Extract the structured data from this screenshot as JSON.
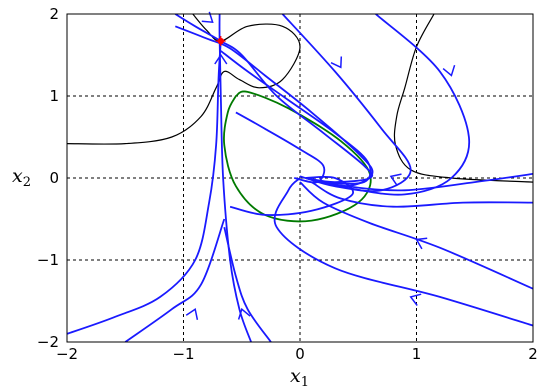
{
  "chart_data": {
    "type": "phase_portrait",
    "xlabel": "x",
    "xlabel_sub": "1",
    "ylabel": "x",
    "ylabel_sub": "2",
    "xlim": [
      -2,
      2
    ],
    "ylim": [
      -2,
      2
    ],
    "x_ticks": [
      "−2",
      "−1",
      "0",
      "1",
      "2"
    ],
    "y_ticks": [
      "−2",
      "−1",
      "0",
      "1",
      "2"
    ],
    "grid": true,
    "colors": {
      "trajectory": "#1a1aff",
      "boundary_black": "#000000",
      "boundary_green": "#007a00",
      "equilibrium_marker": "#ff0000"
    },
    "equilibria": [
      {
        "kind": "saddle",
        "x": -0.68,
        "y": 1.67,
        "marker": "red-star"
      },
      {
        "kind": "stable-focus",
        "x": -0.05,
        "y": 0.02
      }
    ],
    "trajectories": [
      {
        "name": "upper-left-top",
        "points": [
          [
            -1.07,
            2.0
          ],
          [
            -0.9,
            1.85
          ],
          [
            -0.68,
            1.67
          ],
          [
            -0.5,
            1.5
          ],
          [
            -0.2,
            1.0
          ],
          [
            0.2,
            0.55
          ],
          [
            0.55,
            0.15
          ],
          [
            0.6,
            0.0
          ],
          [
            0.3,
            -0.05
          ],
          [
            0.05,
            0.0
          ]
        ]
      },
      {
        "name": "upper-left-mid",
        "points": [
          [
            -1.07,
            1.85
          ],
          [
            -0.8,
            1.7
          ],
          [
            -0.6,
            1.58
          ],
          [
            -0.3,
            1.25
          ],
          [
            0.1,
            0.8
          ],
          [
            0.5,
            0.3
          ],
          [
            0.62,
            0.05
          ],
          [
            0.4,
            -0.1
          ],
          [
            0.05,
            0.0
          ]
        ]
      },
      {
        "name": "upper-left-low",
        "points": [
          [
            -0.68,
            1.55
          ],
          [
            -0.45,
            1.3
          ],
          [
            -0.1,
            0.95
          ],
          [
            0.3,
            0.55
          ],
          [
            0.58,
            0.2
          ],
          [
            0.55,
            -0.05
          ],
          [
            0.2,
            -0.05
          ],
          [
            0.0,
            0.02
          ]
        ]
      },
      {
        "name": "stable-manifold-vertical",
        "points": [
          [
            -0.69,
            2.0
          ],
          [
            -0.69,
            1.7
          ],
          [
            -0.68,
            1.0
          ],
          [
            -0.66,
            0.0
          ],
          [
            -0.6,
            -1.0
          ],
          [
            -0.52,
            -1.6
          ],
          [
            -0.42,
            -2.0
          ]
        ]
      },
      {
        "name": "top-right-1",
        "points": [
          [
            -0.15,
            2.0
          ],
          [
            0.3,
            1.3
          ],
          [
            0.7,
            0.6
          ],
          [
            0.95,
            0.1
          ],
          [
            0.7,
            -0.15
          ],
          [
            0.3,
            -0.1
          ],
          [
            0.05,
            0.0
          ]
        ]
      },
      {
        "name": "top-right-2",
        "points": [
          [
            0.65,
            2.0
          ],
          [
            1.2,
            1.3
          ],
          [
            1.45,
            0.5
          ],
          [
            1.3,
            0.0
          ],
          [
            0.9,
            -0.2
          ],
          [
            0.4,
            -0.12
          ],
          [
            0.05,
            0.0
          ]
        ]
      },
      {
        "name": "right-1",
        "points": [
          [
            2.0,
            0.05
          ],
          [
            1.5,
            -0.05
          ],
          [
            0.9,
            -0.15
          ],
          [
            0.4,
            -0.1
          ],
          [
            0.05,
            0.0
          ]
        ]
      },
      {
        "name": "right-2",
        "points": [
          [
            2.0,
            -0.3
          ],
          [
            1.4,
            -0.3
          ],
          [
            0.8,
            -0.35
          ],
          [
            0.35,
            -0.25
          ],
          [
            0.1,
            -0.05
          ]
        ]
      },
      {
        "name": "bottom-right",
        "points": [
          [
            2.0,
            -1.35
          ],
          [
            1.2,
            -0.85
          ],
          [
            0.6,
            -0.55
          ],
          [
            0.2,
            -0.3
          ],
          [
            0.0,
            -0.05
          ]
        ]
      },
      {
        "name": "bottom-right-2",
        "points": [
          [
            2.0,
            -1.8
          ],
          [
            1.2,
            -1.45
          ],
          [
            0.3,
            -1.1
          ],
          [
            -0.2,
            -0.6
          ],
          [
            -0.1,
            -0.15
          ],
          [
            0.0,
            0.0
          ]
        ]
      },
      {
        "name": "bottom-left",
        "points": [
          [
            -2.0,
            -1.9
          ],
          [
            -1.6,
            -1.7
          ],
          [
            -1.2,
            -1.45
          ],
          [
            -0.9,
            -1.0
          ],
          [
            -0.78,
            -0.3
          ],
          [
            -0.72,
            0.4
          ],
          [
            -0.7,
            1.2
          ],
          [
            -0.68,
            1.67
          ]
        ]
      },
      {
        "name": "bottom-mid",
        "points": [
          [
            -1.5,
            -2.0
          ],
          [
            -1.1,
            -1.6
          ],
          [
            -0.85,
            -1.3
          ],
          [
            -0.65,
            -0.5
          ]
        ]
      },
      {
        "name": "bottom-center",
        "points": [
          [
            -0.25,
            -2.0
          ],
          [
            -0.45,
            -1.6
          ],
          [
            -0.55,
            -1.2
          ],
          [
            -0.65,
            -0.6
          ]
        ]
      },
      {
        "name": "inner-spiral",
        "points": [
          [
            -0.55,
            0.8
          ],
          [
            -0.3,
            0.6
          ],
          [
            0.0,
            0.35
          ],
          [
            0.2,
            0.15
          ],
          [
            0.15,
            -0.05
          ],
          [
            -0.05,
            0.0
          ]
        ]
      },
      {
        "name": "lower-spiral",
        "points": [
          [
            -0.6,
            -0.35
          ],
          [
            -0.3,
            -0.45
          ],
          [
            0.1,
            -0.4
          ],
          [
            0.45,
            -0.2
          ],
          [
            0.3,
            0.0
          ],
          [
            0.05,
            0.0
          ]
        ]
      }
    ],
    "black_curves": [
      {
        "name": "separatrix-upper",
        "points": [
          [
            -0.92,
            2.0
          ],
          [
            -0.8,
            1.8
          ],
          [
            -0.68,
            1.67
          ],
          [
            -0.45,
            1.85
          ],
          [
            -0.15,
            1.85
          ],
          [
            0.0,
            1.6
          ],
          [
            -0.15,
            1.2
          ],
          [
            -0.35,
            1.1
          ],
          [
            -0.52,
            1.2
          ],
          [
            -0.65,
            1.3
          ],
          [
            -0.72,
            1.1
          ],
          [
            -0.85,
            0.75
          ],
          [
            -1.1,
            0.5
          ],
          [
            -1.5,
            0.42
          ],
          [
            -2.0,
            0.42
          ]
        ]
      },
      {
        "name": "right-boundary",
        "points": [
          [
            1.15,
            2.0
          ],
          [
            1.0,
            1.6
          ],
          [
            0.9,
            1.1
          ],
          [
            0.83,
            0.75
          ],
          [
            0.82,
            0.4
          ],
          [
            0.95,
            0.1
          ],
          [
            1.3,
            0.0
          ],
          [
            2.0,
            -0.05
          ]
        ]
      }
    ],
    "green_curve": {
      "name": "region-estimate",
      "points": [
        [
          -0.55,
          1.0
        ],
        [
          -0.45,
          1.05
        ],
        [
          -0.1,
          0.85
        ],
        [
          0.35,
          0.45
        ],
        [
          0.6,
          0.05
        ],
        [
          0.5,
          -0.3
        ],
        [
          0.1,
          -0.52
        ],
        [
          -0.3,
          -0.45
        ],
        [
          -0.55,
          -0.1
        ],
        [
          -0.65,
          0.4
        ],
        [
          -0.62,
          0.8
        ],
        [
          -0.55,
          1.0
        ]
      ]
    },
    "arrows": [
      {
        "at": [
          -0.75,
          1.9
        ],
        "dir": [
          1,
          -0.8
        ]
      },
      {
        "at": [
          -0.68,
          1.5
        ],
        "dir": [
          0,
          1
        ]
      },
      {
        "at": [
          0.35,
          1.35
        ],
        "dir": [
          0.6,
          -1
        ]
      },
      {
        "at": [
          1.3,
          1.25
        ],
        "dir": [
          0.3,
          -1
        ]
      },
      {
        "at": [
          0.78,
          0.02
        ],
        "dir": [
          -1,
          0.4
        ]
      },
      {
        "at": [
          1.0,
          -0.75
        ],
        "dir": [
          -1,
          0.5
        ]
      },
      {
        "at": [
          0.95,
          -1.45
        ],
        "dir": [
          -1,
          0.35
        ]
      },
      {
        "at": [
          -0.9,
          -1.6
        ],
        "dir": [
          0.4,
          1
        ]
      },
      {
        "at": [
          -0.5,
          -1.6
        ],
        "dir": [
          -0.3,
          1
        ]
      }
    ]
  }
}
